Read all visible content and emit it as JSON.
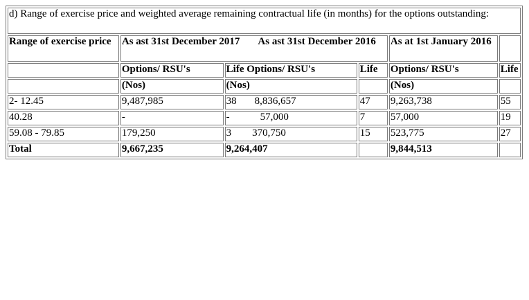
{
  "caption": "d) Range of exercise price and weighted average remaining contractual life (in months) for the options outstanding:",
  "headers": {
    "range": "Range of exercise price",
    "as_2017": "As ast 31st December 2017",
    "as_2016": "As ast 31st December 2016",
    "as_jan2016": "As at 1st January 2016"
  },
  "subheaders": {
    "options_2017": "Options/ RSU's",
    "life_options_2016": "Life Options/ RSU's",
    "life_2016": "Life",
    "options_jan2016": "Options/ RSU's",
    "life_jan2016": "Life"
  },
  "units": {
    "nos_2017": "(Nos)",
    "nos_2016": "(Nos)",
    "nos_jan2016": "(Nos)"
  },
  "rows": [
    {
      "range": "2- 12.45",
      "options_2017": "9,487,985",
      "life_2017": "38",
      "options_2016": "8,836,657",
      "life_2016": "47",
      "options_jan2016": "9,263,738",
      "life_jan2016": "55"
    },
    {
      "range": "40.28",
      "options_2017": "-",
      "life_2017": "-",
      "options_2016": "57,000",
      "life_2016": "7",
      "options_jan2016": "57,000",
      "life_jan2016": "19"
    },
    {
      "range": "59.08 - 79.85",
      "options_2017": "179,250",
      "life_2017": "3",
      "options_2016": "370,750",
      "life_2016": "15",
      "options_jan2016": "523,775",
      "life_jan2016": "27"
    }
  ],
  "total": {
    "label": "Total",
    "options_2017": "9,667,235",
    "options_2016": "9,264,407",
    "options_jan2016": "9,844,513"
  }
}
